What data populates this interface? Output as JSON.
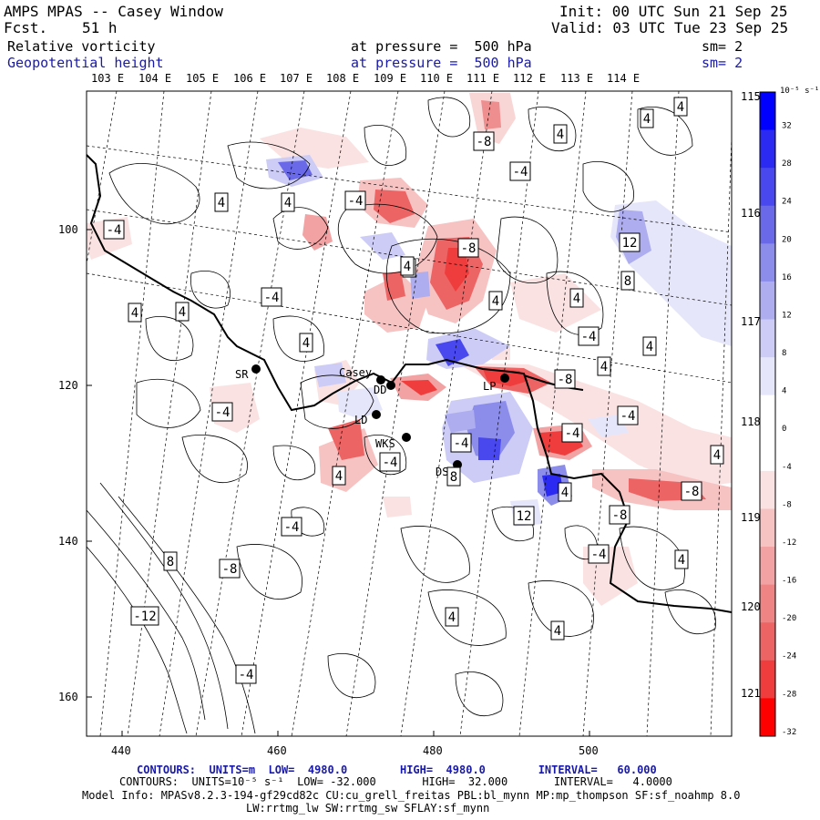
{
  "header": {
    "title": "AMPS MPAS -- Casey Window",
    "fcst_label": "Fcst.",
    "fcst_value": "51 h",
    "init": "Init: 00 UTC Sun 21 Sep 25",
    "valid": "Valid: 03 UTC Tue 23 Sep 25",
    "field1": "Relative vorticity",
    "field1_level": "at pressure =  500 hPa",
    "field1_sm": "sm= 2",
    "field2": "Geopotential height",
    "field2_level": "at pressure =  500 hPa",
    "field2_sm": "sm= 2"
  },
  "axes": {
    "top_lon_labels": [
      "103 E",
      "104 E",
      "105 E",
      "106 E",
      "107 E",
      "108 E",
      "109 E",
      "110 E",
      "111 E",
      "112 E",
      "113 E",
      "114 E"
    ],
    "right_lon_labels": [
      "115 E",
      "116 E",
      "117 E",
      "118 E",
      "119 E",
      "120 E",
      "121 E"
    ],
    "left_labels": [
      "100",
      "120",
      "140",
      "160"
    ],
    "bottom_labels": [
      "440",
      "460",
      "480",
      "500"
    ]
  },
  "colorbar": {
    "units": "10⁻⁵ s⁻¹",
    "ticks": [
      "32",
      "28",
      "24",
      "20",
      "16",
      "12",
      "8",
      "4",
      "0",
      "-4",
      "-8",
      "-12",
      "-16",
      "-20",
      "-24",
      "-28",
      "-32"
    ],
    "colors": [
      "#0000ff",
      "#2a2af2",
      "#4848ee",
      "#6a6ae9",
      "#8c8ceb",
      "#adadf0",
      "#ccccf6",
      "#e6e6fa",
      "#ffffff",
      "#ffffff",
      "#fbe2e2",
      "#f6c2c2",
      "#f2a2a2",
      "#ee8484",
      "#ec6464",
      "#ef3c3c",
      "#ff0000"
    ]
  },
  "stations": [
    {
      "name": "SR"
    },
    {
      "name": "Casey"
    },
    {
      "name": "DD"
    },
    {
      "name": "LD"
    },
    {
      "name": "WKS"
    },
    {
      "name": "DS"
    },
    {
      "name": "LP"
    }
  ],
  "contour_labels": [
    "-4",
    "4",
    "-4",
    "-8",
    "-4",
    "4",
    "4",
    "4",
    "4",
    "-8",
    "4",
    "-4",
    "4",
    "4",
    "4",
    "4",
    "4",
    "-4",
    "-8",
    "-4",
    "-4",
    "12",
    "8",
    "4",
    "4",
    "4",
    "-4",
    "-4",
    "4",
    "-8",
    "-4",
    "-8",
    "12",
    "-4",
    "8",
    "-4",
    "4",
    "8",
    "-8",
    "4",
    "-12",
    "4",
    "4",
    "-4",
    "4",
    "4",
    "4",
    "4",
    "4",
    "4",
    "4"
  ],
  "footer": {
    "line1": "CONTOURS:  UNITS=m  LOW=  4980.0        HIGH=  4980.0        INTERVAL=   60.000",
    "line2": "CONTOURS:  UNITS=10⁻⁵ s⁻¹  LOW= -32.000       HIGH=  32.000       INTERVAL=   4.0000",
    "line3": "Model Info: MPASv8.2.3-194-gf29cd82c CU:cu_grell_freitas PBL:bl_mynn MP:mp_thompson SF:sf_noahmp 8.0",
    "line4": "LW:rrtmg_lw SW:rrtmg_sw SFLAY:sf_mynn"
  }
}
